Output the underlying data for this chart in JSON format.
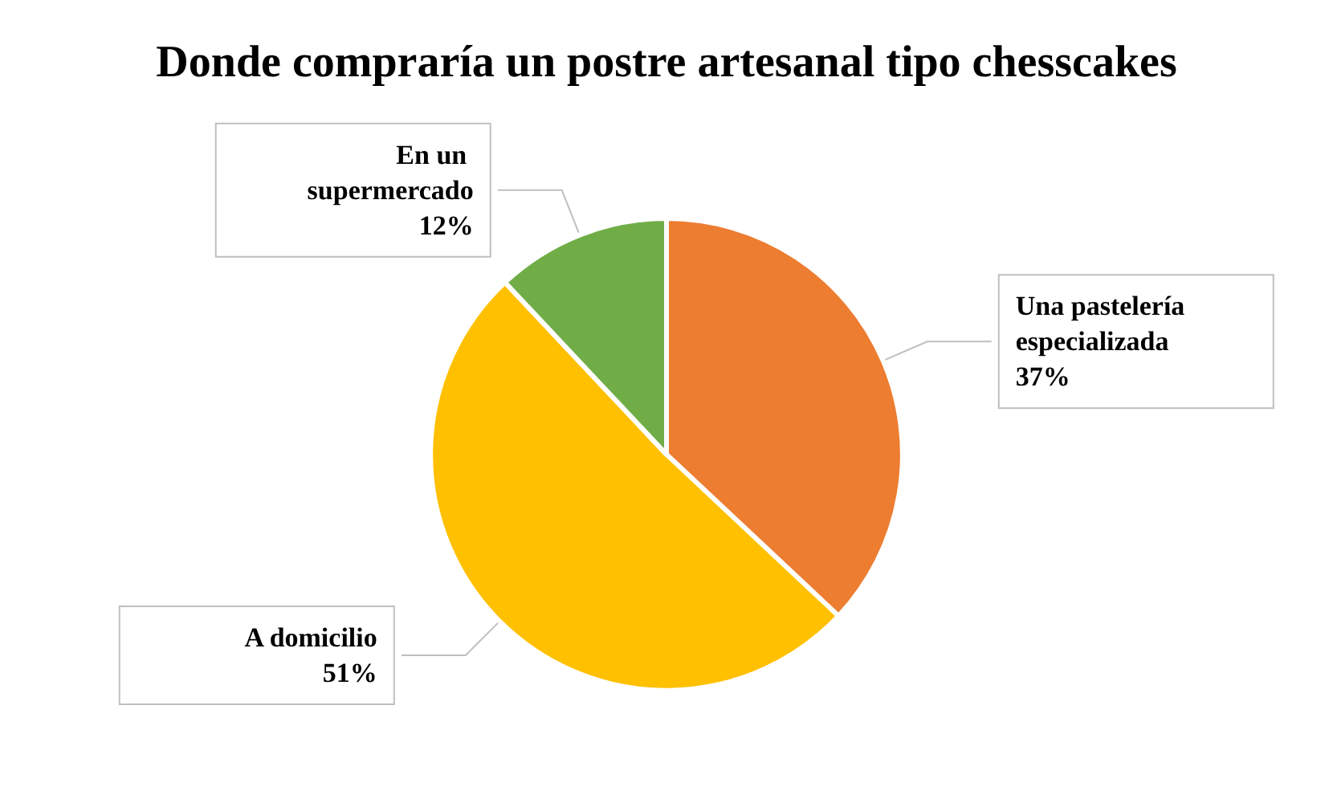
{
  "chart_data": {
    "type": "pie",
    "title": "Donde compraría un postre artesanal tipo chesscakes",
    "categories": [
      "Una pastelería especializada",
      "A domicilio",
      "En un supermercado"
    ],
    "values": [
      37,
      51,
      12
    ],
    "colors": [
      "#ed7d31",
      "#ffc000",
      "#70ad47"
    ],
    "value_labels": [
      "37%",
      "51%",
      "12%"
    ],
    "legend": false
  }
}
